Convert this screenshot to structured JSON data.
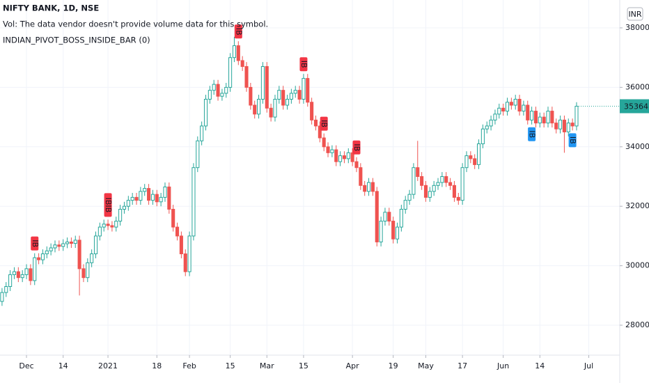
{
  "chart_data": {
    "type": "candlestick",
    "title": "NIFTY BANK, 1D, NSE",
    "subtitle": "Vol: The data vendor doesn't provide volume data for this symbol.",
    "indicator": "INDIAN_PIVOT_BOSS_INSIDE_BAR (0)",
    "currency": "INR",
    "up_color": "#26a69a",
    "down_color": "#ef5350",
    "grid": true,
    "xlim": [
      -0.5,
      151.6
    ],
    "xticks": [
      {
        "value": 6,
        "label": "Dec"
      },
      {
        "value": 15,
        "label": "14"
      },
      {
        "value": 26,
        "label": "2021"
      },
      {
        "value": 38,
        "label": "18"
      },
      {
        "value": 46,
        "label": "Feb"
      },
      {
        "value": 56,
        "label": "15"
      },
      {
        "value": 65,
        "label": "Mar"
      },
      {
        "value": 74,
        "label": "15"
      },
      {
        "value": 86,
        "label": "Apr"
      },
      {
        "value": 96,
        "label": "19"
      },
      {
        "value": 104,
        "label": "May"
      },
      {
        "value": 113,
        "label": "17"
      },
      {
        "value": 123,
        "label": "Jun"
      },
      {
        "value": 132,
        "label": "14"
      },
      {
        "value": 144,
        "label": "Jul"
      }
    ],
    "ylim": [
      26993,
      38937
    ],
    "yticks": [
      {
        "value": 28000,
        "label": "28000.00"
      },
      {
        "value": 30000,
        "label": "30000.00"
      },
      {
        "value": 32000,
        "label": "32000.00"
      },
      {
        "value": 34000,
        "label": "34000.00"
      },
      {
        "value": 36000,
        "label": "36000.00"
      },
      {
        "value": 38000,
        "label": "38000.00"
      }
    ],
    "ohlc": [
      [
        28800,
        29250,
        28650,
        29100
      ],
      [
        29100,
        29450,
        28950,
        29300
      ],
      [
        29300,
        29850,
        29150,
        29700
      ],
      [
        29700,
        29950,
        29550,
        29800
      ],
      [
        29800,
        29950,
        29450,
        29600
      ],
      [
        29600,
        29850,
        29450,
        29700
      ],
      [
        29700,
        30050,
        29550,
        29900
      ],
      [
        29900,
        30050,
        29350,
        29500
      ],
      [
        29500,
        30420,
        29350,
        30270
      ],
      [
        30270,
        30420,
        30050,
        30200
      ],
      [
        30200,
        30550,
        30050,
        30400
      ],
      [
        30400,
        30650,
        30250,
        30500
      ],
      [
        30500,
        30750,
        30350,
        30600
      ],
      [
        30600,
        30850,
        30450,
        30700
      ],
      [
        30700,
        30850,
        30500,
        30650
      ],
      [
        30650,
        30890,
        30500,
        30740
      ],
      [
        30740,
        30950,
        30590,
        30800
      ],
      [
        30800,
        30950,
        30600,
        30750
      ],
      [
        30750,
        31010,
        30600,
        30860
      ],
      [
        30860,
        31010,
        29000,
        29900
      ],
      [
        29900,
        30050,
        29450,
        29600
      ],
      [
        29600,
        30250,
        29450,
        30100
      ],
      [
        30100,
        30550,
        29950,
        30400
      ],
      [
        30400,
        31150,
        30250,
        31000
      ],
      [
        31000,
        31450,
        30850,
        31300
      ],
      [
        31300,
        31550,
        31150,
        31400
      ],
      [
        31400,
        31550,
        31200,
        31350
      ],
      [
        31350,
        31500,
        31150,
        31300
      ],
      [
        31300,
        31650,
        31150,
        31500
      ],
      [
        31500,
        32050,
        31350,
        31900
      ],
      [
        31900,
        32150,
        31750,
        32000
      ],
      [
        32000,
        32350,
        31850,
        32200
      ],
      [
        32200,
        32450,
        32050,
        32300
      ],
      [
        32300,
        32450,
        32050,
        32200
      ],
      [
        32200,
        32650,
        32050,
        32500
      ],
      [
        32500,
        32750,
        32350,
        32600
      ],
      [
        32600,
        32750,
        32050,
        32200
      ],
      [
        32200,
        32550,
        32050,
        32400
      ],
      [
        32400,
        32550,
        32000,
        32150
      ],
      [
        32150,
        32450,
        32000,
        32300
      ],
      [
        32300,
        32800,
        32150,
        32650
      ],
      [
        32650,
        32800,
        31750,
        31900
      ],
      [
        31900,
        32050,
        31150,
        31300
      ],
      [
        31300,
        31450,
        30850,
        31000
      ],
      [
        31000,
        31150,
        30250,
        30400
      ],
      [
        30400,
        30550,
        29650,
        29800
      ],
      [
        29800,
        31150,
        29650,
        31000
      ],
      [
        31000,
        33450,
        30850,
        33300
      ],
      [
        33300,
        34350,
        33150,
        34200
      ],
      [
        34200,
        34850,
        34050,
        34700
      ],
      [
        34700,
        35750,
        34550,
        35600
      ],
      [
        35600,
        36050,
        35450,
        35900
      ],
      [
        35900,
        36250,
        35750,
        36100
      ],
      [
        36100,
        36250,
        35550,
        35700
      ],
      [
        35700,
        35950,
        35550,
        35800
      ],
      [
        35800,
        36150,
        35650,
        36000
      ],
      [
        36000,
        37150,
        35850,
        37000
      ],
      [
        37000,
        37700,
        36850,
        37400
      ],
      [
        37400,
        37550,
        36750,
        36900
      ],
      [
        36900,
        37050,
        36550,
        36700
      ],
      [
        36700,
        36850,
        35850,
        36000
      ],
      [
        36000,
        36150,
        35250,
        35400
      ],
      [
        35400,
        35550,
        34950,
        35100
      ],
      [
        35100,
        35750,
        34950,
        35600
      ],
      [
        35600,
        36850,
        35450,
        36700
      ],
      [
        36700,
        36850,
        35150,
        35300
      ],
      [
        35300,
        35450,
        34850,
        35000
      ],
      [
        35000,
        35750,
        34850,
        35600
      ],
      [
        35600,
        36050,
        35450,
        35900
      ],
      [
        35900,
        36050,
        35250,
        35400
      ],
      [
        35400,
        35750,
        35250,
        35600
      ],
      [
        35600,
        35950,
        35450,
        35800
      ],
      [
        35800,
        36050,
        35650,
        35900
      ],
      [
        35900,
        36050,
        35450,
        35600
      ],
      [
        35600,
        36450,
        35450,
        36300
      ],
      [
        36300,
        36450,
        35350,
        35500
      ],
      [
        35500,
        35650,
        34750,
        34900
      ],
      [
        34900,
        35050,
        34550,
        34700
      ],
      [
        34700,
        34850,
        34150,
        34300
      ],
      [
        34300,
        34450,
        33850,
        34000
      ],
      [
        34000,
        34150,
        33650,
        33800
      ],
      [
        33800,
        34050,
        33650,
        33900
      ],
      [
        33900,
        34050,
        33350,
        33500
      ],
      [
        33500,
        33850,
        33350,
        33700
      ],
      [
        33700,
        33850,
        33450,
        33600
      ],
      [
        33600,
        33950,
        33450,
        33800
      ],
      [
        33800,
        33950,
        33350,
        33500
      ],
      [
        33500,
        33650,
        33150,
        33300
      ],
      [
        33300,
        33450,
        32550,
        32700
      ],
      [
        32700,
        32850,
        32350,
        32500
      ],
      [
        32500,
        32950,
        32350,
        32800
      ],
      [
        32800,
        32950,
        32350,
        32500
      ],
      [
        32500,
        32650,
        30650,
        30800
      ],
      [
        30800,
        31650,
        30650,
        31500
      ],
      [
        31500,
        31950,
        31350,
        31800
      ],
      [
        31800,
        31950,
        31350,
        31500
      ],
      [
        31500,
        31650,
        30750,
        30900
      ],
      [
        30900,
        31450,
        30750,
        31300
      ],
      [
        31300,
        32050,
        31150,
        31900
      ],
      [
        31900,
        32350,
        31750,
        32200
      ],
      [
        32200,
        32550,
        32050,
        32400
      ],
      [
        32400,
        33450,
        32250,
        33300
      ],
      [
        33300,
        34200,
        32850,
        33000
      ],
      [
        33000,
        33150,
        32550,
        32700
      ],
      [
        32700,
        32850,
        32150,
        32300
      ],
      [
        32300,
        32650,
        32150,
        32500
      ],
      [
        32500,
        32850,
        32350,
        32700
      ],
      [
        32700,
        32950,
        32550,
        32800
      ],
      [
        32800,
        33150,
        32650,
        33000
      ],
      [
        33000,
        33150,
        32650,
        32800
      ],
      [
        32800,
        32950,
        32550,
        32700
      ],
      [
        32700,
        32850,
        32150,
        32300
      ],
      [
        32300,
        32450,
        32050,
        32200
      ],
      [
        32200,
        33450,
        32050,
        33300
      ],
      [
        33300,
        33850,
        33150,
        33700
      ],
      [
        33700,
        33850,
        33450,
        33600
      ],
      [
        33600,
        33750,
        33250,
        33400
      ],
      [
        33400,
        34250,
        33250,
        34100
      ],
      [
        34100,
        34750,
        33950,
        34600
      ],
      [
        34600,
        34850,
        34450,
        34700
      ],
      [
        34700,
        35050,
        34550,
        34900
      ],
      [
        34900,
        35250,
        34750,
        35100
      ],
      [
        35100,
        35450,
        34950,
        35300
      ],
      [
        35300,
        35450,
        35050,
        35200
      ],
      [
        35200,
        35650,
        35050,
        35500
      ],
      [
        35500,
        35650,
        35250,
        35400
      ],
      [
        35400,
        35750,
        35250,
        35600
      ],
      [
        35600,
        35750,
        35050,
        35200
      ],
      [
        35200,
        35550,
        35050,
        35400
      ],
      [
        35400,
        35550,
        34750,
        34900
      ],
      [
        34900,
        35350,
        34750,
        35200
      ],
      [
        35200,
        35350,
        34650,
        34800
      ],
      [
        34800,
        35150,
        34650,
        35000
      ],
      [
        35000,
        35150,
        34650,
        34800
      ],
      [
        34800,
        35350,
        34650,
        35200
      ],
      [
        35200,
        35350,
        34650,
        34800
      ],
      [
        34800,
        34950,
        34450,
        34600
      ],
      [
        34600,
        35050,
        34450,
        34900
      ],
      [
        34900,
        35050,
        33800,
        34500
      ],
      [
        34500,
        34950,
        34350,
        34800
      ],
      [
        34800,
        34950,
        34550,
        34700
      ],
      [
        34700,
        35500,
        34550,
        35364.65
      ]
    ],
    "markers": [
      {
        "label": "IB",
        "candle": 8,
        "side": "above",
        "color": "#f23645"
      },
      {
        "label": "IBIB",
        "candle": 26,
        "side": "above",
        "color": "#f23645"
      },
      {
        "label": "IB",
        "candle": 58,
        "side": "above",
        "color": "#f23645"
      },
      {
        "label": "IB",
        "candle": 74,
        "side": "above",
        "color": "#f23645"
      },
      {
        "label": "IB",
        "candle": 79,
        "side": "above",
        "color": "#f23645"
      },
      {
        "label": "IB",
        "candle": 87,
        "side": "above",
        "color": "#f23645"
      },
      {
        "label": "IB",
        "candle": 130,
        "side": "below",
        "color": "#2196f3"
      },
      {
        "label": "IB",
        "candle": 140,
        "side": "below",
        "color": "#2196f3"
      }
    ]
  }
}
